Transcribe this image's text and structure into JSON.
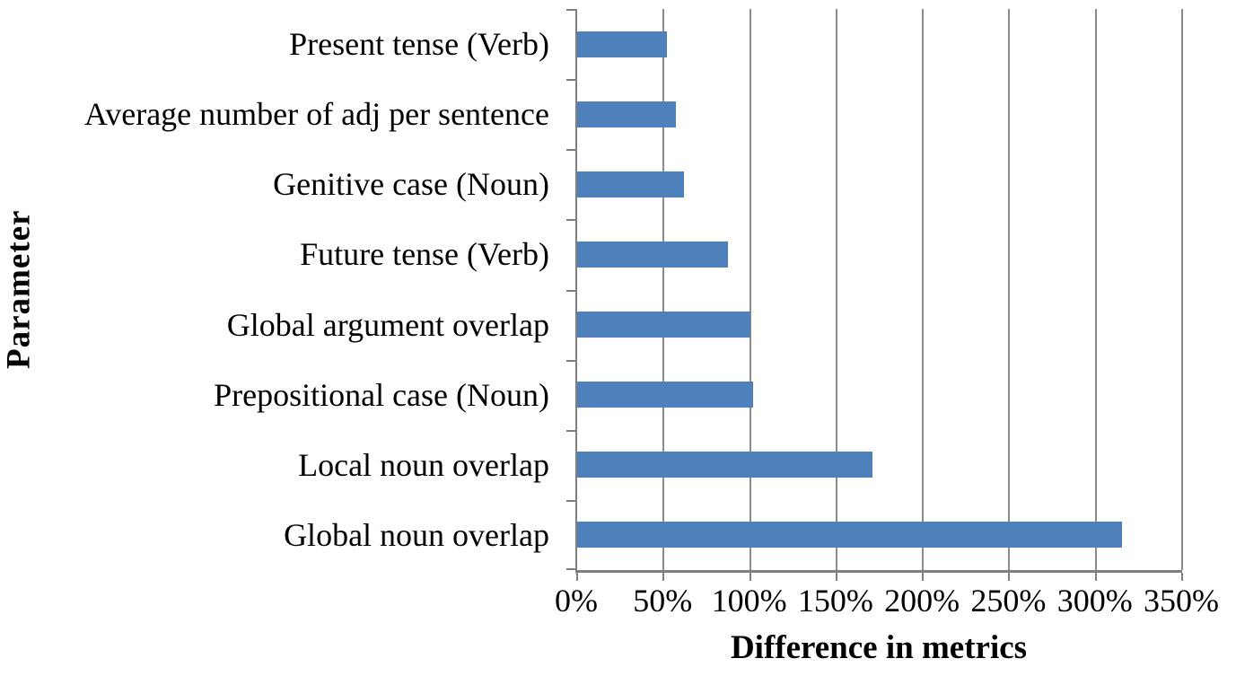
{
  "chart_data": {
    "type": "bar",
    "orientation": "horizontal",
    "title": "",
    "categories": [
      "Present tense (Verb)",
      "Average number of adj per sentence",
      "Genitive case (Noun)",
      "Future tense (Verb)",
      "Global argument overlap",
      "Prepositional  case (Noun)",
      "Local noun overlap",
      "Global noun overlap"
    ],
    "values": [
      52,
      57,
      62,
      87,
      100,
      102,
      171,
      315
    ],
    "value_unit": "%",
    "xlabel": "Difference in metrics",
    "ylabel": "Parameter",
    "xlim": [
      0,
      350
    ],
    "x_tick_step": 50,
    "x_tick_labels": [
      "0%",
      "50%",
      "100%",
      "150%",
      "200%",
      "250%",
      "300%",
      "350%"
    ],
    "grid": "vertical-gridlines",
    "legend": "none",
    "colors": {
      "bar": "#4e80bc",
      "gridline": "#8c8c8c",
      "axis": "#7f7f7f",
      "text": "#000000",
      "background": "#ffffff"
    }
  }
}
